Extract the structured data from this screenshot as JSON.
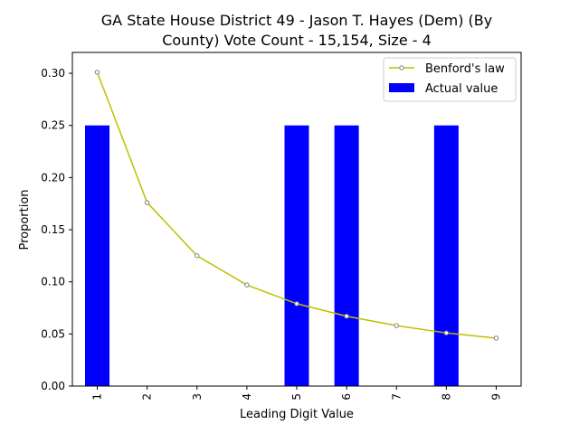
{
  "chart_data": {
    "type": "bar",
    "title_line1": "GA State House District 49 - Jason T. Hayes (Dem) (By",
    "title_line2": "County) Vote Count - 15,154, Size - 4",
    "xlabel": "Leading Digit Value",
    "ylabel": "Proportion",
    "categories": [
      "1",
      "2",
      "3",
      "4",
      "5",
      "6",
      "7",
      "8",
      "9"
    ],
    "ylim": [
      0,
      0.32
    ],
    "yticks": [
      "0.00",
      "0.05",
      "0.10",
      "0.15",
      "0.20",
      "0.25",
      "0.30"
    ],
    "series": [
      {
        "name": "Actual value",
        "kind": "bar",
        "color": "#0000ff",
        "values": [
          0.25,
          0,
          0,
          0,
          0.25,
          0.25,
          0,
          0.25,
          0
        ]
      },
      {
        "name": "Benford's law",
        "kind": "line",
        "color": "#bfbf00",
        "values": [
          0.301,
          0.176,
          0.125,
          0.097,
          0.079,
          0.067,
          0.058,
          0.051,
          0.046
        ]
      }
    ],
    "legend": {
      "position": "top-right",
      "line_label": "Benford's law",
      "bar_label": "Actual value"
    },
    "grid": false
  }
}
